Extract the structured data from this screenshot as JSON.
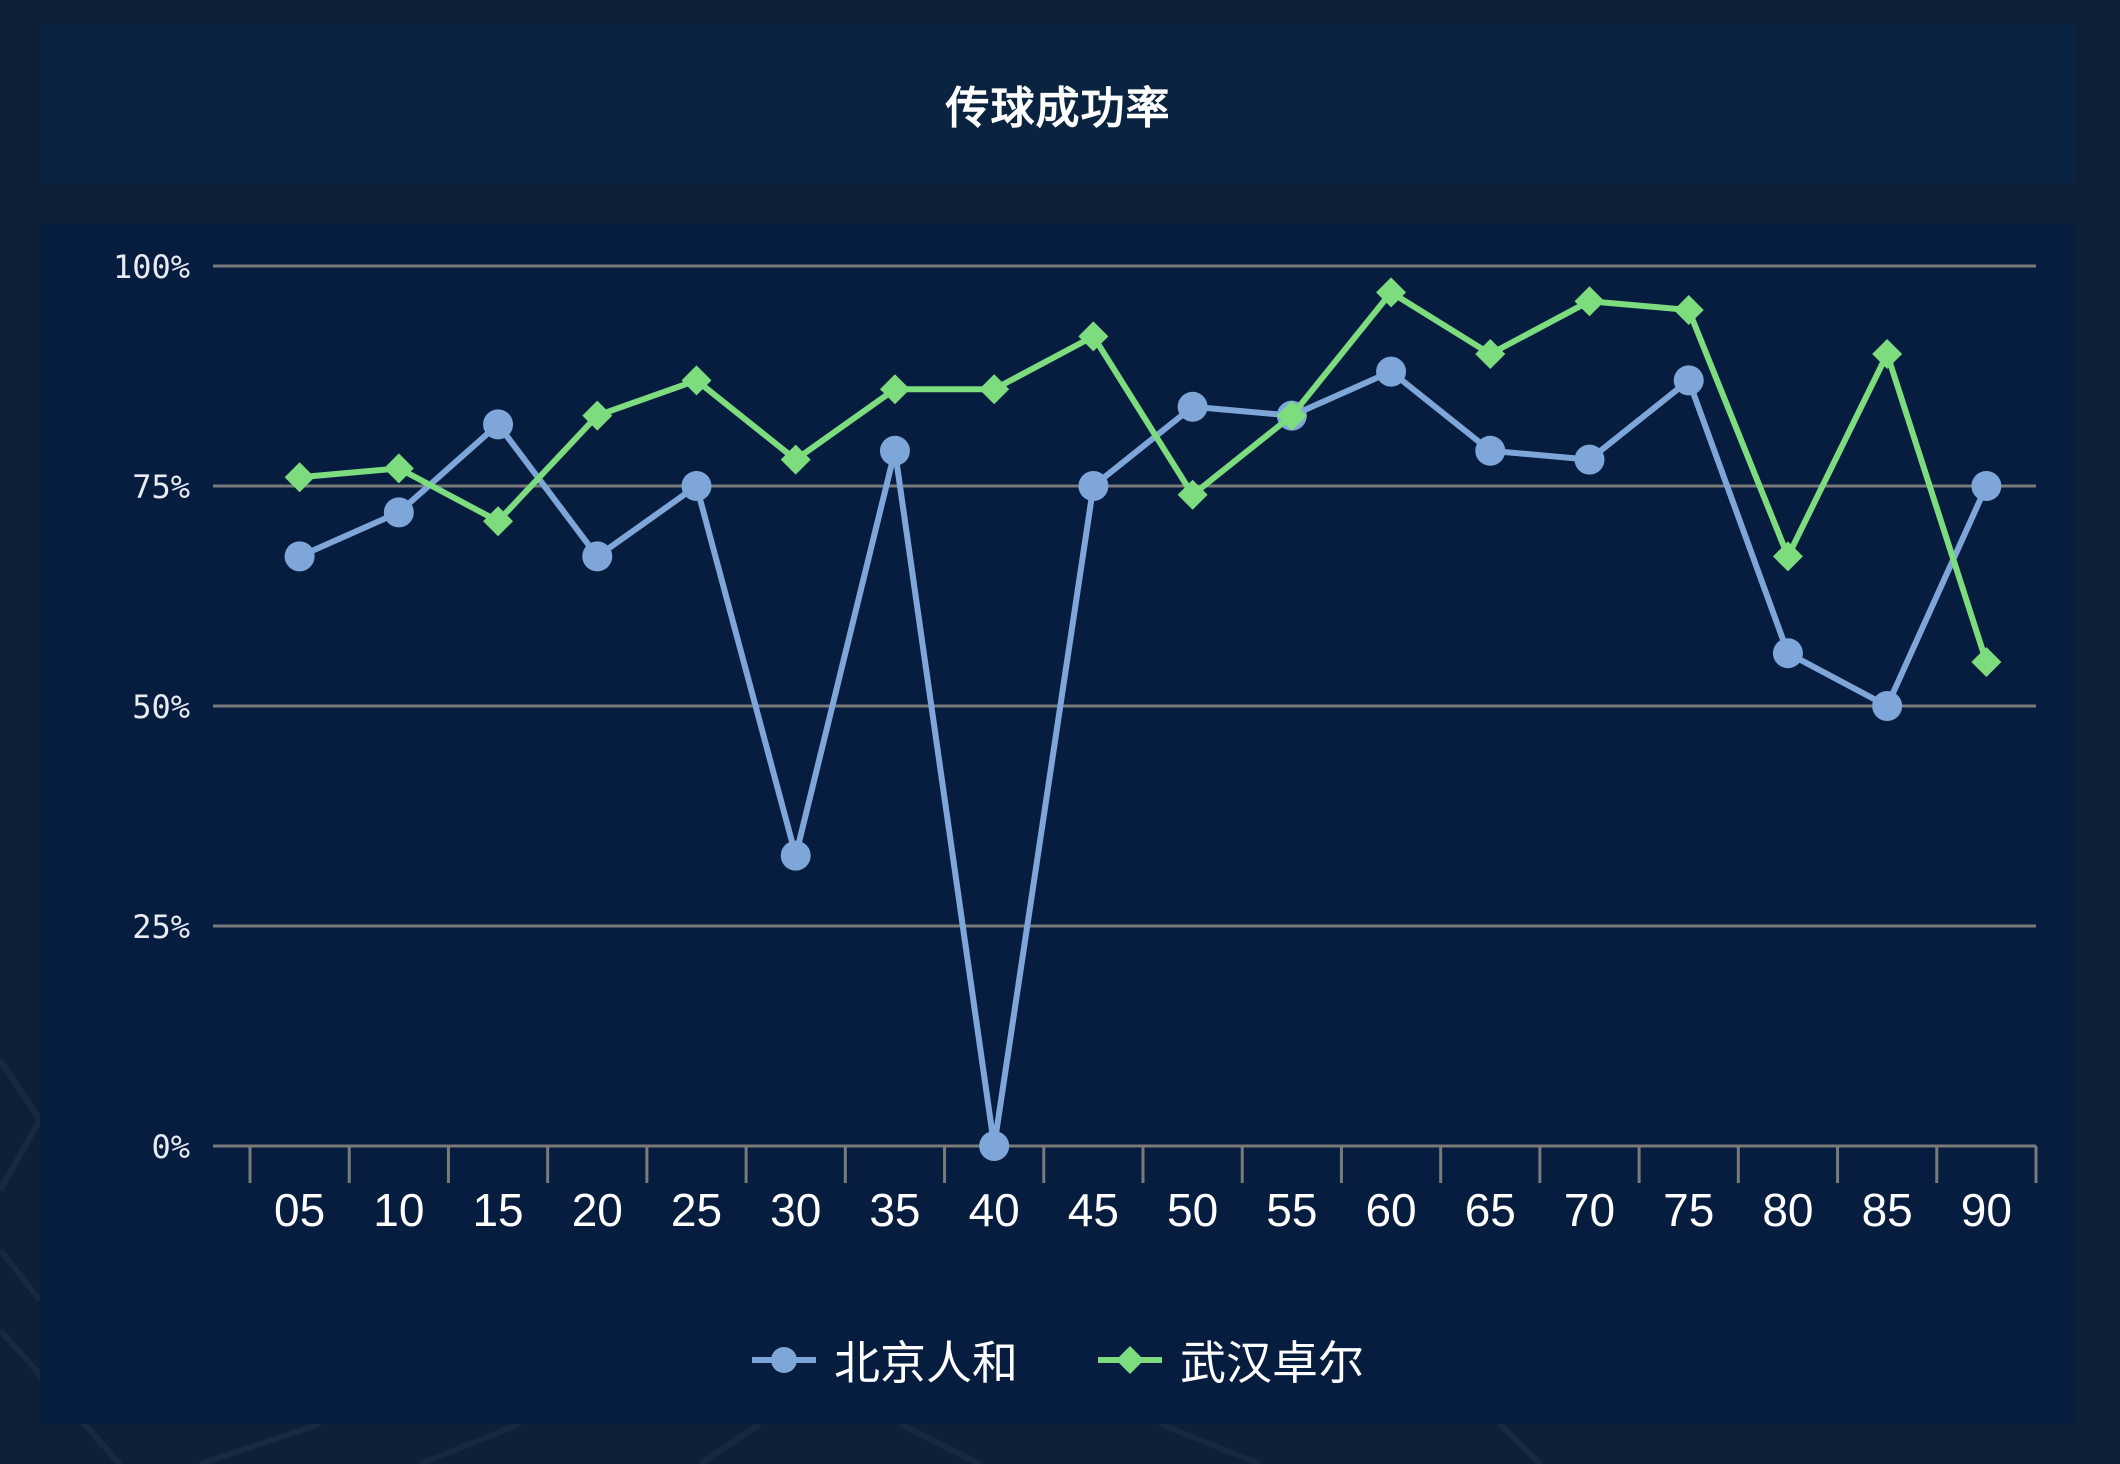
{
  "title": "传球成功率",
  "colors": {
    "page_bg": "#0e1f38",
    "title_panel_bg": "#0a2340",
    "chart_panel_bg": "#061d3f",
    "gridline": "#7a7a7a",
    "beijing": "#7ea6d8",
    "wuhan": "#7ddc7e"
  },
  "legend": [
    {
      "name": "北京人和",
      "marker": "circle",
      "color": "#7ea6d8"
    },
    {
      "name": "武汉卓尔",
      "marker": "diamond",
      "color": "#7ddc7e"
    }
  ],
  "chart_data": {
    "type": "line",
    "title": "传球成功率",
    "xlabel": "",
    "ylabel": "",
    "ylim": [
      0,
      100
    ],
    "y_ticks": [
      "0%",
      "25%",
      "50%",
      "75%",
      "100%"
    ],
    "y_tick_values": [
      0,
      25,
      50,
      75,
      100
    ],
    "grid": true,
    "legend_position": "bottom",
    "categories": [
      "05",
      "10",
      "15",
      "20",
      "25",
      "30",
      "35",
      "40",
      "45",
      "50",
      "55",
      "60",
      "65",
      "70",
      "75",
      "80",
      "85",
      "90"
    ],
    "series": [
      {
        "name": "北京人和",
        "marker": "circle",
        "color": "#7ea6d8",
        "values": [
          67,
          72,
          82,
          67,
          75,
          33,
          79,
          0,
          75,
          84,
          83,
          88,
          79,
          78,
          87,
          56,
          50,
          75
        ]
      },
      {
        "name": "武汉卓尔",
        "marker": "diamond",
        "color": "#7ddc7e",
        "values": [
          76,
          77,
          71,
          83,
          87,
          78,
          86,
          86,
          92,
          74,
          83,
          97,
          90,
          96,
          95,
          67,
          90,
          55
        ]
      }
    ]
  }
}
